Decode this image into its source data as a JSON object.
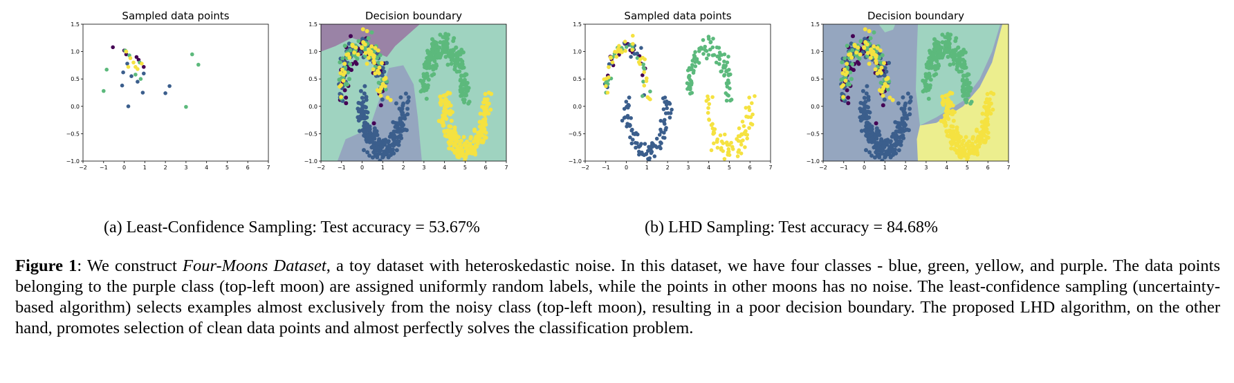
{
  "colors": {
    "purple": "#440154",
    "blue": "#3b5e8c",
    "green": "#5cb97c",
    "yellow": "#f5e241",
    "region_purple": "#9a83a6",
    "region_blue": "#95a6bf",
    "region_green": "#9fd3c0",
    "region_yellow": "#ecee8e"
  },
  "chart_data": [
    {
      "type": "scatter",
      "title": "Sampled data points",
      "xlim": [
        -2,
        7
      ],
      "ylim": [
        -1.0,
        1.5
      ],
      "xticks": [
        "−2",
        "−1",
        "0",
        "1",
        "2",
        "3",
        "4",
        "5",
        "6",
        "7"
      ],
      "yticks": [
        "−1.0",
        "−0.5",
        "0.0",
        "0.5",
        "1.0",
        "1.5"
      ],
      "grid": false,
      "series": [
        {
          "class": "purple",
          "points": [
            [
              -0.55,
              1.08
            ],
            [
              0.0,
              1.02
            ],
            [
              0.6,
              0.9
            ],
            [
              0.95,
              0.72
            ],
            [
              0.7,
              0.85
            ],
            [
              0.1,
              0.95
            ]
          ]
        },
        {
          "class": "blue",
          "points": [
            [
              -0.05,
              0.62
            ],
            [
              0.15,
              0.78
            ],
            [
              0.35,
              0.55
            ],
            [
              0.9,
              0.25
            ],
            [
              2.0,
              0.24
            ],
            [
              2.2,
              0.37
            ],
            [
              0.2,
              0.0
            ],
            [
              0.65,
              0.45
            ],
            [
              0.95,
              0.6
            ],
            [
              -0.1,
              0.38
            ]
          ]
        },
        {
          "class": "green",
          "points": [
            [
              -0.85,
              0.67
            ],
            [
              -1.0,
              0.28
            ],
            [
              0.05,
              1.02
            ],
            [
              0.25,
              0.93
            ],
            [
              0.8,
              0.5
            ],
            [
              0.55,
              0.58
            ],
            [
              3.3,
              0.95
            ],
            [
              3.6,
              0.76
            ],
            [
              3.0,
              -0.01
            ],
            [
              0.75,
              0.8
            ]
          ]
        },
        {
          "class": "yellow",
          "points": [
            [
              0.1,
              1.0
            ],
            [
              0.3,
              0.88
            ],
            [
              0.45,
              0.8
            ],
            [
              0.55,
              0.72
            ],
            [
              0.85,
              0.78
            ],
            [
              0.2,
              0.72
            ],
            [
              0.65,
              0.68
            ]
          ]
        }
      ]
    },
    {
      "type": "scatter",
      "title": "Decision boundary",
      "xlim": [
        -2,
        7
      ],
      "ylim": [
        -1.0,
        1.5
      ],
      "xticks": [
        "−2",
        "−1",
        "0",
        "1",
        "2",
        "3",
        "4",
        "5",
        "6",
        "7"
      ],
      "yticks": [
        "−1.0",
        "−0.5",
        "0.0",
        "0.5",
        "1.0",
        "1.5"
      ],
      "background": "regions",
      "grid": false
    },
    {
      "type": "scatter",
      "title": "Sampled data points",
      "xlim": [
        -2,
        7
      ],
      "ylim": [
        -1.0,
        1.5
      ],
      "xticks": [
        "−2",
        "−1",
        "0",
        "1",
        "2",
        "3",
        "4",
        "5",
        "6",
        "7"
      ],
      "yticks": [
        "−1.0",
        "−0.5",
        "0.0",
        "0.5",
        "1.0",
        "1.5"
      ],
      "grid": false
    },
    {
      "type": "scatter",
      "title": "Decision boundary",
      "xlim": [
        -2,
        7
      ],
      "ylim": [
        -1.0,
        1.5
      ],
      "xticks": [
        "−2",
        "−1",
        "0",
        "1",
        "2",
        "3",
        "4",
        "5",
        "6",
        "7"
      ],
      "yticks": [
        "−1.0",
        "−0.5",
        "0.0",
        "0.5",
        "1.0",
        "1.5"
      ],
      "background": "regions",
      "grid": false
    }
  ],
  "subcaptions": {
    "a": "(a) Least-Confidence Sampling: Test accuracy = 53.67%",
    "b": "(b) LHD Sampling: Test accuracy = 84.68%"
  },
  "caption": {
    "label": "Figure 1",
    "sep": ": We construct ",
    "dataset": "Four-Moons Dataset",
    "text": ", a toy dataset with heteroskedastic noise. In this dataset, we have four classes - blue, green, yellow, and purple. The data points belonging to the purple class (top-left moon) are assigned uniformly random labels, while the points in other moons has no noise. The least-confidence sampling (uncertainty-based algorithm) selects examples almost exclusively from the noisy class (top-left moon), resulting in a poor decision boundary. The proposed LHD algorithm, on the other hand, promotes selection of clean data points and almost perfectly solves the classification problem."
  }
}
